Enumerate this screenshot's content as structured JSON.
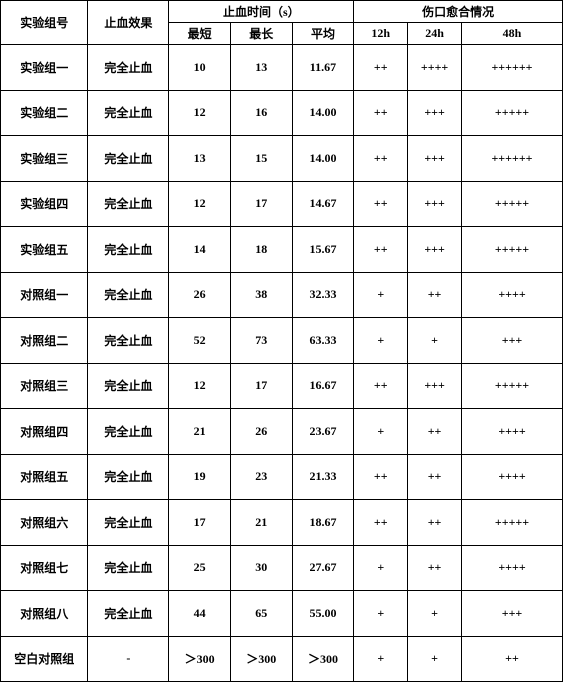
{
  "header": {
    "group_no": "实验组号",
    "effect": "止血效果",
    "time_group": "止血时间（s）",
    "heal_group": "伤口愈合情况",
    "min": "最短",
    "max": "最长",
    "avg": "平均",
    "h12": "12h",
    "h24": "24h",
    "h48": "48h"
  },
  "rows": [
    {
      "group": "实验组一",
      "effect": "完全止血",
      "min": "10",
      "max": "13",
      "avg": "11.67",
      "h12": "++",
      "h24": "++++",
      "h48": "++++++"
    },
    {
      "group": "实验组二",
      "effect": "完全止血",
      "min": "12",
      "max": "16",
      "avg": "14.00",
      "h12": "++",
      "h24": "+++",
      "h48": "+++++"
    },
    {
      "group": "实验组三",
      "effect": "完全止血",
      "min": "13",
      "max": "15",
      "avg": "14.00",
      "h12": "++",
      "h24": "+++",
      "h48": "++++++"
    },
    {
      "group": "实验组四",
      "effect": "完全止血",
      "min": "12",
      "max": "17",
      "avg": "14.67",
      "h12": "++",
      "h24": "+++",
      "h48": "+++++"
    },
    {
      "group": "实验组五",
      "effect": "完全止血",
      "min": "14",
      "max": "18",
      "avg": "15.67",
      "h12": "++",
      "h24": "+++",
      "h48": "+++++"
    },
    {
      "group": "对照组一",
      "effect": "完全止血",
      "min": "26",
      "max": "38",
      "avg": "32.33",
      "h12": "+",
      "h24": "++",
      "h48": "++++"
    },
    {
      "group": "对照组二",
      "effect": "完全止血",
      "min": "52",
      "max": "73",
      "avg": "63.33",
      "h12": "+",
      "h24": "+",
      "h48": "+++"
    },
    {
      "group": "对照组三",
      "effect": "完全止血",
      "min": "12",
      "max": "17",
      "avg": "16.67",
      "h12": "++",
      "h24": "+++",
      "h48": "+++++"
    },
    {
      "group": "对照组四",
      "effect": "完全止血",
      "min": "21",
      "max": "26",
      "avg": "23.67",
      "h12": "+",
      "h24": "++",
      "h48": "++++"
    },
    {
      "group": "对照组五",
      "effect": "完全止血",
      "min": "19",
      "max": "23",
      "avg": "21.33",
      "h12": "++",
      "h24": "++",
      "h48": "++++"
    },
    {
      "group": "对照组六",
      "effect": "完全止血",
      "min": "17",
      "max": "21",
      "avg": "18.67",
      "h12": "++",
      "h24": "++",
      "h48": "+++++"
    },
    {
      "group": "对照组七",
      "effect": "完全止血",
      "min": "25",
      "max": "30",
      "avg": "27.67",
      "h12": "+",
      "h24": "++",
      "h48": "++++"
    },
    {
      "group": "对照组八",
      "effect": "完全止血",
      "min": "44",
      "max": "65",
      "avg": "55.00",
      "h12": "+",
      "h24": "+",
      "h48": "+++"
    },
    {
      "group": "空白对照组",
      "effect": "-",
      "min": "＞300",
      "max": "＞300",
      "avg": "＞300",
      "h12": "+",
      "h24": "+",
      "h48": "++"
    }
  ]
}
